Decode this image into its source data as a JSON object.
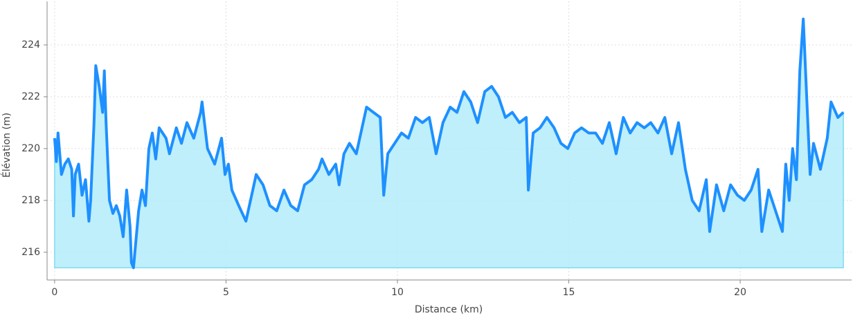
{
  "chart_data": {
    "type": "area-line",
    "xlabel": "Distance (km)",
    "ylabel": "Élévation (m)",
    "color": "#1e90ff",
    "fill_color": "#b3ecfa",
    "grid": true,
    "xlim": [
      -0.22,
      23.25
    ],
    "ylim": [
      214.93,
      225.68
    ],
    "xticks": [
      0,
      5,
      10,
      15,
      20
    ],
    "yticks": [
      216,
      218,
      220,
      222,
      224
    ],
    "x": [
      0,
      0.05,
      0.1,
      0.2,
      0.3,
      0.4,
      0.5,
      0.55,
      0.6,
      0.7,
      0.8,
      0.9,
      1.0,
      1.05,
      1.15,
      1.2,
      1.3,
      1.4,
      1.45,
      1.5,
      1.6,
      1.7,
      1.8,
      1.9,
      2.0,
      2.1,
      2.2,
      2.24,
      2.3,
      2.45,
      2.55,
      2.65,
      2.75,
      2.85,
      2.95,
      3.05,
      3.25,
      3.35,
      3.55,
      3.7,
      3.86,
      4.06,
      4.26,
      4.3,
      4.46,
      4.67,
      4.87,
      4.97,
      5.07,
      5.17,
      5.37,
      5.58,
      5.78,
      5.88,
      6.08,
      6.28,
      6.48,
      6.69,
      6.89,
      7.09,
      7.29,
      7.5,
      7.7,
      7.8,
      8.0,
      8.2,
      8.3,
      8.44,
      8.6,
      8.8,
      9.0,
      9.1,
      9.3,
      9.5,
      9.6,
      9.72,
      9.92,
      10.12,
      10.32,
      10.53,
      10.73,
      10.93,
      11.13,
      11.33,
      11.54,
      11.74,
      11.94,
      12.14,
      12.34,
      12.55,
      12.75,
      12.95,
      13.15,
      13.35,
      13.56,
      13.76,
      13.82,
      13.96,
      14.16,
      14.36,
      14.57,
      14.77,
      14.97,
      15.17,
      15.37,
      15.58,
      15.78,
      15.98,
      16.18,
      16.38,
      16.59,
      16.79,
      16.99,
      17.2,
      17.39,
      17.6,
      17.8,
      18.0,
      18.2,
      18.4,
      18.6,
      18.8,
      19.01,
      19.11,
      19.31,
      19.52,
      19.72,
      19.92,
      20.12,
      20.32,
      20.52,
      20.63,
      20.83,
      21.03,
      21.23,
      21.33,
      21.43,
      21.53,
      21.64,
      21.74,
      21.84,
      21.94,
      22.04,
      22.14,
      22.34,
      22.54,
      22.65,
      22.85,
      23.01
    ],
    "values": [
      220.4,
      219.5,
      220.6,
      219.0,
      219.4,
      219.6,
      219.2,
      217.4,
      219.0,
      219.4,
      218.2,
      218.8,
      217.2,
      218.0,
      221.0,
      223.2,
      222.4,
      221.4,
      223.0,
      221.0,
      218.0,
      217.5,
      217.8,
      217.4,
      216.6,
      218.4,
      217.0,
      215.6,
      215.4,
      217.6,
      218.4,
      217.8,
      220.0,
      220.6,
      219.6,
      220.8,
      220.4,
      219.8,
      220.8,
      220.2,
      221.0,
      220.4,
      221.4,
      221.8,
      220.0,
      219.4,
      220.4,
      219.0,
      219.4,
      218.4,
      217.8,
      217.2,
      218.4,
      219.0,
      218.6,
      217.8,
      217.6,
      218.4,
      217.8,
      217.6,
      218.6,
      218.8,
      219.2,
      219.6,
      219.0,
      219.4,
      218.6,
      219.8,
      220.2,
      219.8,
      221.0,
      221.6,
      221.4,
      221.2,
      218.2,
      219.8,
      220.2,
      220.6,
      220.4,
      221.2,
      221.0,
      221.2,
      219.8,
      221.0,
      221.6,
      221.4,
      222.2,
      221.8,
      221.0,
      222.2,
      222.4,
      222.0,
      221.2,
      221.4,
      221.0,
      221.2,
      218.4,
      220.6,
      220.8,
      221.2,
      220.8,
      220.2,
      220.0,
      220.6,
      220.8,
      220.6,
      220.6,
      220.2,
      221.0,
      219.8,
      221.2,
      220.6,
      221.0,
      220.8,
      221.0,
      220.6,
      221.2,
      219.8,
      221.0,
      219.2,
      218.0,
      217.6,
      218.8,
      216.8,
      218.6,
      217.6,
      218.6,
      218.2,
      218.0,
      218.4,
      219.2,
      216.8,
      218.4,
      217.6,
      216.8,
      219.4,
      218.0,
      220.0,
      218.8,
      223.0,
      225.0,
      222.0,
      219.0,
      220.2,
      219.2,
      220.4,
      221.8,
      221.2,
      221.4
    ]
  }
}
